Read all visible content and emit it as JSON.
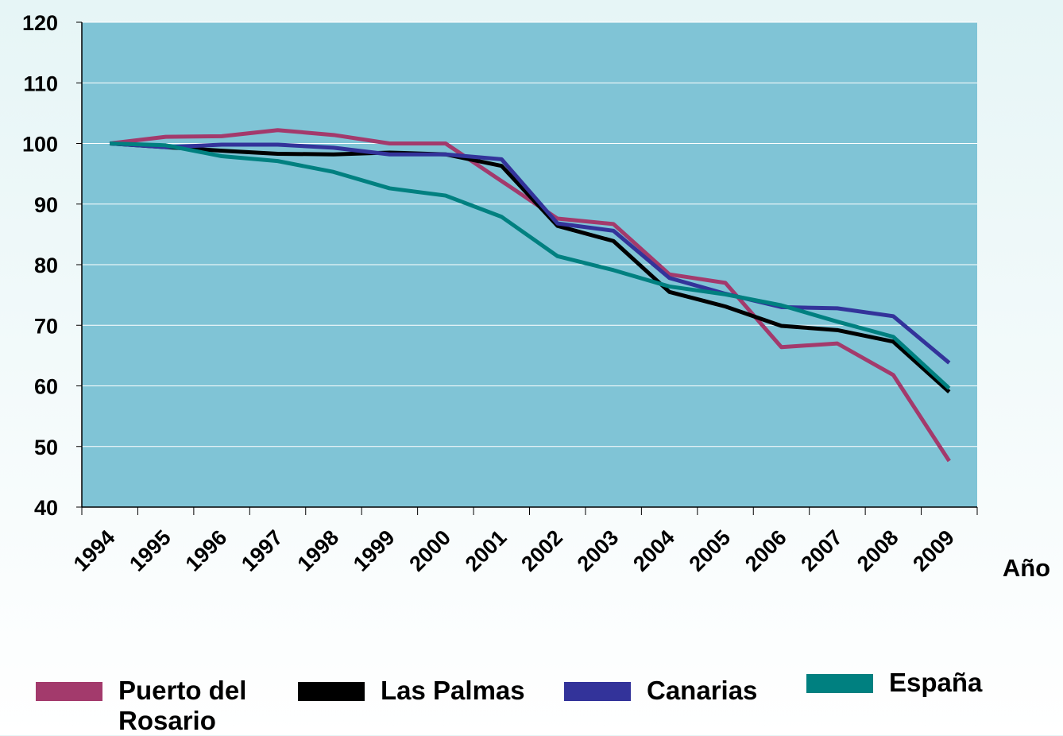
{
  "chart_data": {
    "type": "line",
    "x_label": "Año",
    "categories": [
      "1994",
      "1995",
      "1996",
      "1997",
      "1998",
      "1999",
      "2000",
      "2001",
      "2002",
      "2003",
      "2004",
      "2005",
      "2006",
      "2007",
      "2008",
      "2009"
    ],
    "series": [
      {
        "name": "Puerto del Rosario",
        "color": "#a33a6c",
        "values": [
          100,
          101.1,
          101.2,
          102.2,
          101.4,
          100,
          100,
          93.8,
          87.6,
          86.7,
          78.4,
          77,
          66.4,
          67,
          61.8,
          47.6
        ]
      },
      {
        "name": "Las Palmas",
        "color": "#000000",
        "values": [
          100,
          99.4,
          98.8,
          98.3,
          98.2,
          98.5,
          98.2,
          96.3,
          86.4,
          83.9,
          75.5,
          73.1,
          69.9,
          69.2,
          67.3,
          59
        ]
      },
      {
        "name": "Canarias",
        "color": "#33339a",
        "values": [
          100,
          99.4,
          99.8,
          99.8,
          99.3,
          98.2,
          98.2,
          97.4,
          86.8,
          85.6,
          77.8,
          75.2,
          73,
          72.8,
          71.5,
          63.8
        ]
      },
      {
        "name": "España",
        "color": "#008080",
        "values": [
          100,
          99.7,
          97.9,
          97.1,
          95.3,
          92.6,
          91.4,
          87.9,
          81.4,
          79.1,
          76.4,
          75.1,
          73.3,
          70.6,
          68.1,
          59.6
        ]
      }
    ],
    "ylim": [
      40,
      120
    ],
    "yticks": [
      40,
      50,
      60,
      70,
      80,
      90,
      100,
      110,
      120
    ],
    "grid": true,
    "legend": "bottom"
  }
}
